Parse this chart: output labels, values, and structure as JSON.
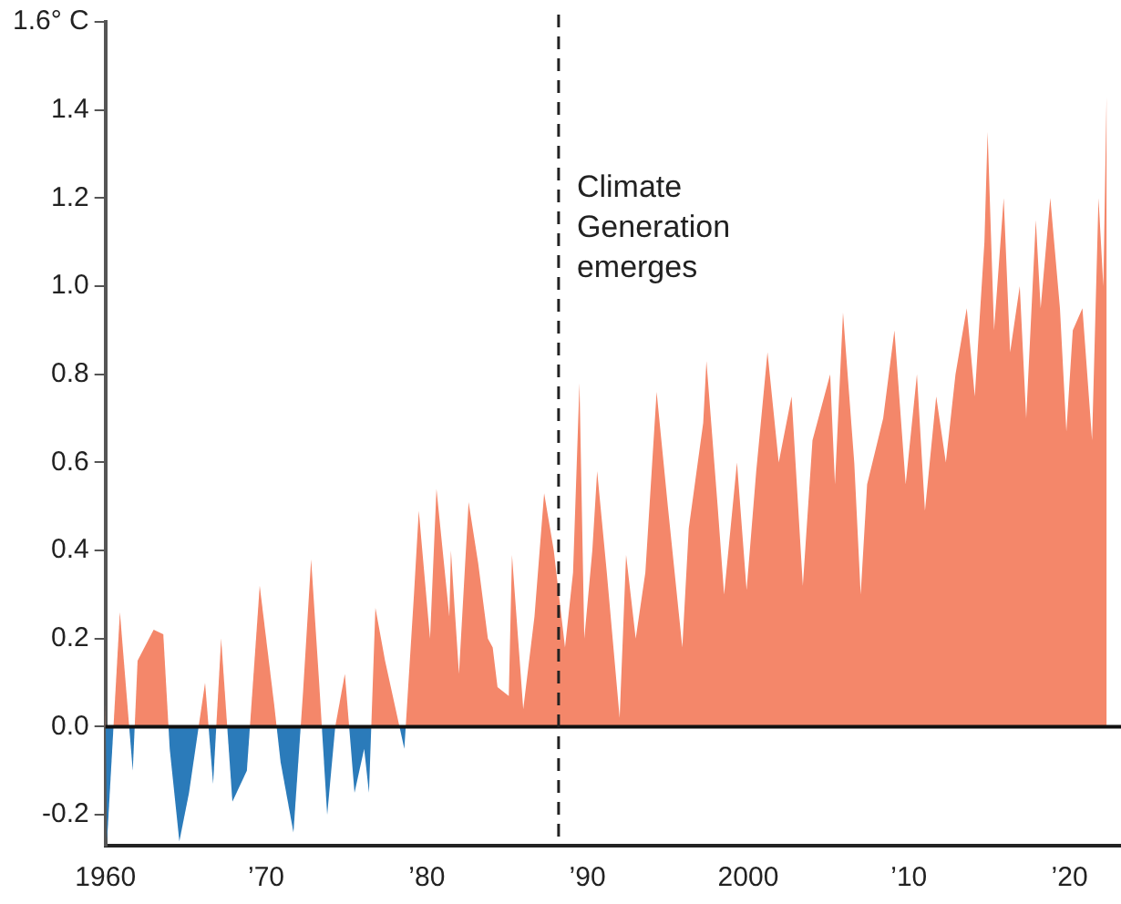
{
  "chart_data": {
    "type": "area",
    "x": [
      1960.0,
      1960.1,
      1960.9,
      1961.7,
      1962.0,
      1963.0,
      1963.6,
      1964.0,
      1964.6,
      1965.2,
      1966.2,
      1966.7,
      1967.2,
      1967.9,
      1968.8,
      1969.6,
      1970.5,
      1970.9,
      1971.7,
      1972.3,
      1972.8,
      1973.3,
      1973.8,
      1974.3,
      1974.9,
      1975.5,
      1976.1,
      1976.4,
      1976.8,
      1977.4,
      1978.6,
      1979.2,
      1979.5,
      1980.2,
      1980.6,
      1981.4,
      1981.5,
      1982.0,
      1982.6,
      1983.2,
      1983.8,
      1984.1,
      1984.4,
      1985.1,
      1985.3,
      1986.0,
      1986.7,
      1987.3,
      1987.9,
      1988.6,
      1989.1,
      1989.5,
      1989.8,
      1990.3,
      1990.6,
      1991.2,
      1992.0,
      1992.4,
      1993.0,
      1993.6,
      1994.3,
      1995.0,
      1995.9,
      1996.3,
      1997.2,
      1997.4,
      1998.1,
      1998.5,
      1999.3,
      1999.9,
      2000.5,
      2001.2,
      2001.9,
      2002.7,
      2003.4,
      2004.0,
      2005.1,
      2005.4,
      2005.9,
      2006.6,
      2007.0,
      2007.4,
      2008.4,
      2009.1,
      2009.8,
      2010.5,
      2011.0,
      2011.7,
      2012.3,
      2012.9,
      2013.6,
      2014.1,
      2014.7,
      2014.9,
      2015.3,
      2015.9,
      2016.3,
      2016.9,
      2017.3,
      2017.9,
      2018.2,
      2018.8,
      2019.4,
      2019.8,
      2020.2,
      2020.8,
      2021.4,
      2021.8,
      2022.1,
      2022.3
    ],
    "series": [
      {
        "color": "#f4876a",
        "values": [
          0.05,
          null,
          0.26,
          null,
          0.15,
          0.22,
          0.21,
          null,
          null,
          null,
          0.1,
          null,
          0.2,
          null,
          null,
          0.32,
          0.05,
          null,
          null,
          0.08,
          0.38,
          0.1,
          null,
          0.0,
          0.12,
          null,
          null,
          null,
          0.27,
          0.15,
          null,
          0.3,
          0.49,
          0.2,
          0.54,
          0.25,
          0.4,
          0.12,
          0.51,
          0.37,
          0.2,
          0.18,
          0.09,
          0.07,
          0.39,
          0.04,
          0.25,
          0.53,
          0.4,
          0.18,
          0.35,
          0.78,
          0.2,
          0.4,
          0.58,
          0.35,
          0.02,
          0.39,
          0.2,
          0.35,
          0.76,
          0.5,
          0.18,
          0.45,
          0.69,
          0.83,
          0.5,
          0.3,
          0.6,
          0.31,
          0.58,
          0.85,
          0.6,
          0.75,
          0.32,
          0.65,
          0.8,
          0.55,
          0.94,
          0.6,
          0.3,
          0.55,
          0.7,
          0.9,
          0.55,
          0.8,
          0.49,
          0.75,
          0.6,
          0.8,
          0.95,
          0.75,
          1.1,
          1.35,
          0.9,
          1.2,
          0.85,
          1.0,
          0.7,
          1.15,
          0.95,
          1.2,
          0.95,
          0.67,
          0.9,
          0.95,
          0.65,
          1.2,
          1.0,
          1.43
        ]
      },
      {
        "color": "#2b7bba",
        "values": [
          null,
          -0.26,
          null,
          -0.1,
          null,
          null,
          null,
          -0.05,
          -0.26,
          -0.15,
          null,
          -0.13,
          null,
          -0.17,
          -0.1,
          null,
          null,
          -0.08,
          -0.24,
          null,
          null,
          null,
          -0.2,
          null,
          null,
          -0.15,
          -0.05,
          -0.15,
          null,
          null,
          -0.05,
          null,
          null,
          null,
          null,
          null,
          null,
          null,
          null,
          null,
          null,
          null,
          null,
          null,
          null,
          null,
          null,
          null,
          null,
          null,
          null,
          null,
          null,
          null,
          null,
          null,
          null,
          null,
          null,
          null,
          null,
          null,
          null,
          null,
          null,
          null,
          null,
          null,
          null,
          null,
          null,
          null,
          null,
          null,
          null,
          null,
          null,
          null,
          null,
          null,
          null,
          null,
          null,
          null,
          null,
          null,
          null,
          null,
          null,
          null,
          null,
          null,
          null,
          null,
          null,
          null,
          null,
          null,
          null,
          null,
          null,
          null,
          null,
          null,
          null,
          null,
          null,
          null,
          null,
          null
        ]
      }
    ],
    "xlim": [
      1960,
      2023.2
    ],
    "xticks": [
      1960,
      {
        "value": 1970,
        "label": "’70"
      },
      {
        "value": 1980,
        "label": "’80"
      },
      {
        "value": 1990,
        "label": "’90"
      },
      2000,
      {
        "value": 2010,
        "label": "’10"
      },
      {
        "value": 2020,
        "label": "’20"
      }
    ],
    "ylim": [
      -0.27,
      1.6
    ],
    "yticks": [
      -0.2,
      {
        "value": 0,
        "label": "0.0"
      },
      0.2,
      0.4,
      0.6,
      0.8,
      {
        "value": 1,
        "label": "1.0"
      },
      1.2,
      1.4,
      {
        "value": 1.6,
        "label": "1.6° C"
      }
    ],
    "ref_lines": [
      {
        "axis": "y",
        "value": 0,
        "color": "#111111",
        "line_style": "solid"
      },
      {
        "axis": "x",
        "value": 1988.2,
        "label": "Climate Generation emerges",
        "color": "#222222",
        "line_style": "dashed"
      }
    ],
    "grid": false,
    "legend": false
  }
}
